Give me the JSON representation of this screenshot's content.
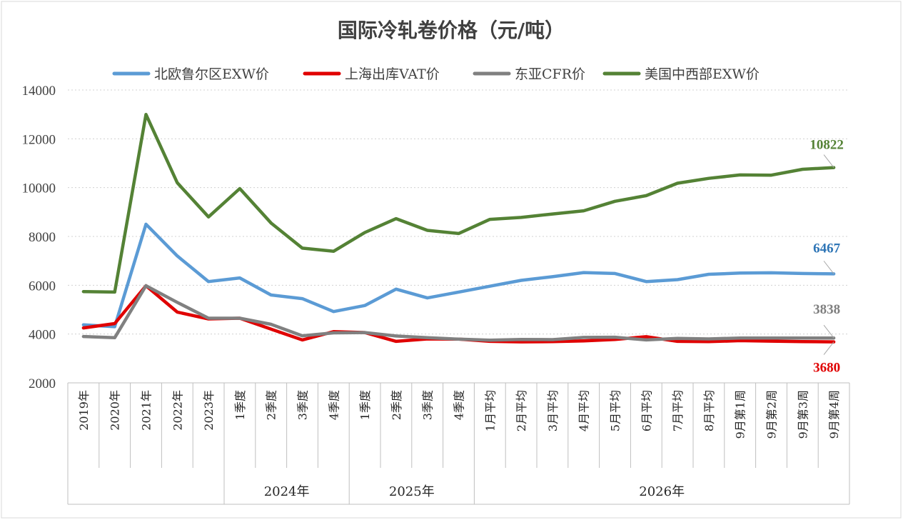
{
  "chart_data": {
    "type": "line",
    "title": "国际冷轧卷价格（元/吨）",
    "ylim": [
      2000,
      14000
    ],
    "yticks": [
      2000,
      4000,
      6000,
      8000,
      10000,
      12000,
      14000
    ],
    "grid": "horizontal-dotted",
    "legend": "top",
    "categories": [
      "2019年",
      "2020年",
      "2021年",
      "2022年",
      "2023年",
      "1季度",
      "2季度",
      "3季度",
      "4季度",
      "1季度",
      "2季度",
      "3季度",
      "4季度",
      "1月平均",
      "2月平均",
      "3月平均",
      "4月平均",
      "5月平均",
      "6月平均",
      "7月平均",
      "8月平均",
      "9月第1周",
      "9月第2周",
      "9月第3周",
      "9月第4周"
    ],
    "groups": [
      {
        "label": "2024年",
        "start": 5,
        "end": 8
      },
      {
        "label": "2025年",
        "start": 9,
        "end": 12
      },
      {
        "label": "2026年",
        "start": 13,
        "end": 24
      }
    ],
    "series": [
      {
        "name": "北欧鲁尔区EXW价",
        "color": "#5B9BD5",
        "end_label": "6467",
        "end_label_color": "#2E75B6",
        "values": [
          4380,
          4300,
          8500,
          7200,
          6150,
          6300,
          5600,
          5450,
          4920,
          5170,
          5840,
          5480,
          5720,
          5960,
          6200,
          6350,
          6520,
          6480,
          6150,
          6230,
          6450,
          6500,
          6510,
          6480,
          6467
        ]
      },
      {
        "name": "上海出库VAT价",
        "color": "#E00000",
        "end_label": "3680",
        "end_label_color": "#E00000",
        "values": [
          4250,
          4430,
          5980,
          4900,
          4620,
          4650,
          4200,
          3760,
          4100,
          4060,
          3700,
          3800,
          3790,
          3700,
          3680,
          3690,
          3720,
          3780,
          3890,
          3700,
          3690,
          3730,
          3710,
          3690,
          3680
        ]
      },
      {
        "name": "东亚CFR价",
        "color": "#808080",
        "end_label": "3838",
        "end_label_color": "#7F7F7F",
        "values": [
          3900,
          3850,
          5980,
          5300,
          4650,
          4650,
          4400,
          3930,
          4050,
          4060,
          3920,
          3850,
          3790,
          3750,
          3780,
          3770,
          3860,
          3870,
          3760,
          3820,
          3800,
          3838,
          3838,
          3838,
          3838
        ]
      },
      {
        "name": "美国中西部EXW价",
        "color": "#548235",
        "end_label": "10822",
        "end_label_color": "#548235",
        "values": [
          5740,
          5720,
          13000,
          10200,
          8800,
          9960,
          8550,
          7520,
          7390,
          8160,
          8730,
          8250,
          8120,
          8700,
          8780,
          8920,
          9050,
          9440,
          9670,
          10180,
          10380,
          10520,
          10510,
          10750,
          10822
        ]
      }
    ]
  }
}
